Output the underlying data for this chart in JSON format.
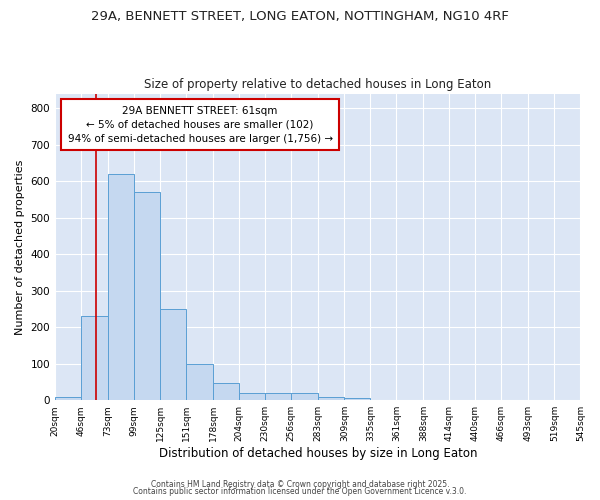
{
  "title1": "29A, BENNETT STREET, LONG EATON, NOTTINGHAM, NG10 4RF",
  "title2": "Size of property relative to detached houses in Long Eaton",
  "xlabel": "Distribution of detached houses by size in Long Eaton",
  "ylabel": "Number of detached properties",
  "bin_edges": [
    20,
    46,
    73,
    99,
    125,
    151,
    178,
    204,
    230,
    256,
    283,
    309,
    335,
    361,
    388,
    414,
    440,
    466,
    493,
    519,
    545
  ],
  "bar_heights": [
    10,
    230,
    620,
    570,
    250,
    100,
    48,
    20,
    20,
    20,
    8,
    5,
    0,
    0,
    0,
    0,
    0,
    0,
    0,
    0
  ],
  "bar_color": "#c5d8f0",
  "bar_edge_color": "#5a9fd4",
  "plot_bg_color": "#dce6f5",
  "grid_color": "#ffffff",
  "property_line_x": 61,
  "property_line_color": "#cc0000",
  "annotation_text": "29A BENNETT STREET: 61sqm\n← 5% of detached houses are smaller (102)\n94% of semi-detached houses are larger (1,756) →",
  "annotation_box_edgecolor": "#cc0000",
  "annotation_bg_color": "#ffffff",
  "ylim": [
    0,
    840
  ],
  "yticks": [
    0,
    100,
    200,
    300,
    400,
    500,
    600,
    700,
    800
  ],
  "fig_bg_color": "#ffffff",
  "footer1": "Contains HM Land Registry data © Crown copyright and database right 2025.",
  "footer2": "Contains public sector information licensed under the Open Government Licence v.3.0."
}
